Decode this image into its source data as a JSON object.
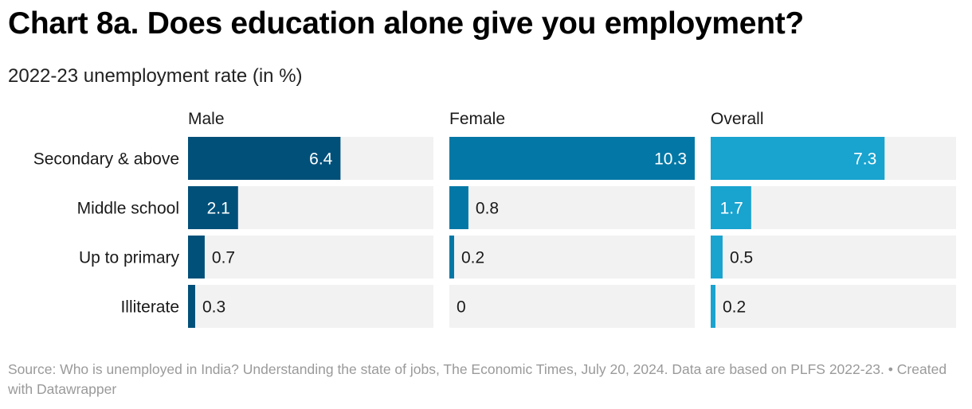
{
  "title": "Chart 8a. Does education alone give you employment?",
  "subtitle": "2022-23 unemployment rate (in %)",
  "footer": {
    "source": "Source: Who is unemployed in India? Understanding the state of jobs, The Economic Times, July 20, 2024. Data are based on PLFS 2022-23.",
    "separator": "•",
    "credit": "Created with Datawrapper"
  },
  "chart_data": {
    "type": "bar",
    "orientation": "horizontal",
    "layout": "small-multiples",
    "title": "Chart 8a. Does education alone give you employment?",
    "subtitle": "2022-23 unemployment rate (in %)",
    "categories": [
      "Secondary & above",
      "Middle school",
      "Up to primary",
      "Illiterate"
    ],
    "xlim": [
      0,
      10.3
    ],
    "series": [
      {
        "name": "Male",
        "color": "#00507a",
        "values": [
          6.4,
          2.1,
          0.7,
          0.3
        ]
      },
      {
        "name": "Female",
        "color": "#0378a6",
        "values": [
          10.3,
          0.8,
          0.2,
          0
        ]
      },
      {
        "name": "Overall",
        "color": "#19a3cf",
        "values": [
          7.3,
          1.7,
          0.5,
          0.2
        ]
      }
    ],
    "track_color": "#f2f2f2"
  }
}
